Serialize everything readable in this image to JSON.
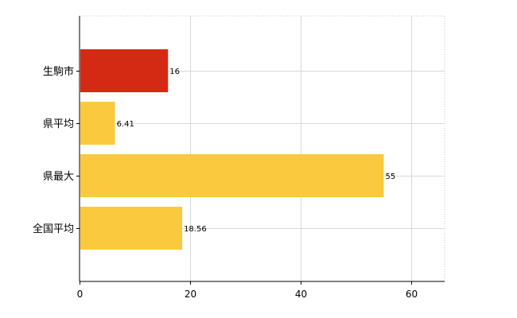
{
  "chart_data": {
    "type": "bar",
    "orientation": "horizontal",
    "categories": [
      "生駒市",
      "県平均",
      "県最大",
      "全国平均"
    ],
    "values": [
      16,
      6.41,
      55,
      18.56
    ],
    "value_labels": [
      "16",
      "6.41",
      "55",
      "18.56"
    ],
    "bar_colors": [
      "#d42a14",
      "#fbc93d",
      "#fbc93d",
      "#fbc93d"
    ],
    "xlim": [
      0,
      66
    ],
    "xticks": [
      0,
      20,
      40,
      60
    ],
    "xtick_labels": [
      "0",
      "20",
      "40",
      "60"
    ],
    "grid": true,
    "title": "",
    "xlabel": "",
    "ylabel": ""
  }
}
